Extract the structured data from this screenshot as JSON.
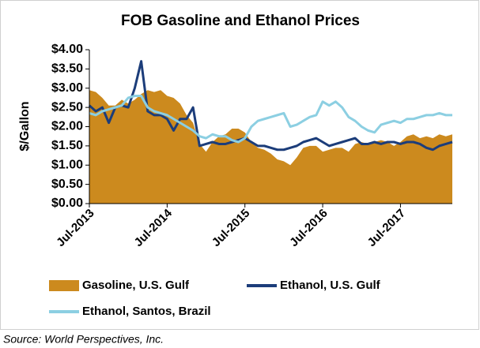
{
  "chart_data": {
    "type": "line",
    "title": "FOB Gasoline and Ethanol Prices",
    "y_label": "$/Gallon",
    "source": "Source: World Perspectives, Inc.",
    "x": [
      "2013-07",
      "2013-08",
      "2013-09",
      "2013-10",
      "2013-11",
      "2013-12",
      "2014-01",
      "2014-02",
      "2014-03",
      "2014-04",
      "2014-05",
      "2014-06",
      "2014-07",
      "2014-08",
      "2014-09",
      "2014-10",
      "2014-11",
      "2014-12",
      "2015-01",
      "2015-02",
      "2015-03",
      "2015-04",
      "2015-05",
      "2015-06",
      "2015-07",
      "2015-08",
      "2015-09",
      "2015-10",
      "2015-11",
      "2015-12",
      "2016-01",
      "2016-02",
      "2016-03",
      "2016-04",
      "2016-05",
      "2016-06",
      "2016-07",
      "2016-08",
      "2016-09",
      "2016-10",
      "2016-11",
      "2016-12",
      "2017-01",
      "2017-02",
      "2017-03",
      "2017-04",
      "2017-05",
      "2017-06",
      "2017-07",
      "2017-08",
      "2017-09",
      "2017-10",
      "2017-11",
      "2017-12",
      "2018-01",
      "2018-02",
      "2018-03"
    ],
    "xlim": [
      "2013-07",
      "2018-03"
    ],
    "xticks": [
      {
        "value": "2013-07",
        "label": "Jul-2013"
      },
      {
        "value": "2014-07",
        "label": "Jul-2014"
      },
      {
        "value": "2015-07",
        "label": "Jul-2015"
      },
      {
        "value": "2016-07",
        "label": "Jul-2016"
      },
      {
        "value": "2017-07",
        "label": "Jul-2017"
      }
    ],
    "ylim": [
      0,
      4
    ],
    "yticks": [
      {
        "value": 0,
        "label": "$0.00"
      },
      {
        "value": 0.5,
        "label": "$0.50"
      },
      {
        "value": 1,
        "label": "$1.00"
      },
      {
        "value": 1.5,
        "label": "$1.50"
      },
      {
        "value": 2,
        "label": "$2.00"
      },
      {
        "value": 2.5,
        "label": "$2.50"
      },
      {
        "value": 3,
        "label": "$3.00"
      },
      {
        "value": 3.5,
        "label": "$3.50"
      },
      {
        "value": 4,
        "label": "$4.00"
      }
    ],
    "grid": false,
    "legend": "bottom",
    "series": [
      {
        "name": "Gasoline, U.S. Gulf",
        "color": "#cc8a1e",
        "style": "area",
        "values": [
          2.95,
          2.9,
          2.75,
          2.55,
          2.55,
          2.7,
          2.6,
          2.7,
          2.85,
          2.95,
          2.9,
          2.95,
          2.8,
          2.75,
          2.6,
          2.3,
          2.1,
          1.55,
          1.35,
          1.6,
          1.75,
          1.8,
          1.95,
          1.95,
          1.85,
          1.6,
          1.45,
          1.4,
          1.3,
          1.15,
          1.1,
          1.0,
          1.2,
          1.45,
          1.5,
          1.5,
          1.35,
          1.4,
          1.45,
          1.45,
          1.35,
          1.55,
          1.6,
          1.55,
          1.6,
          1.65,
          1.6,
          1.5,
          1.6,
          1.75,
          1.8,
          1.7,
          1.75,
          1.7,
          1.8,
          1.75,
          1.8
        ]
      },
      {
        "name": "Ethanol, U.S. Gulf",
        "color": "#1c3d7a",
        "style": "line",
        "values": [
          2.55,
          2.4,
          2.5,
          2.1,
          2.5,
          2.55,
          2.5,
          3.0,
          3.7,
          2.4,
          2.3,
          2.3,
          2.2,
          1.9,
          2.2,
          2.2,
          2.5,
          1.5,
          1.55,
          1.6,
          1.55,
          1.55,
          1.6,
          1.65,
          1.7,
          1.6,
          1.5,
          1.5,
          1.45,
          1.4,
          1.4,
          1.45,
          1.5,
          1.6,
          1.65,
          1.7,
          1.6,
          1.5,
          1.55,
          1.6,
          1.65,
          1.7,
          1.55,
          1.55,
          1.6,
          1.55,
          1.6,
          1.6,
          1.55,
          1.6,
          1.6,
          1.55,
          1.45,
          1.4,
          1.5,
          1.55,
          1.6
        ]
      },
      {
        "name": "Ethanol, Santos, Brazil",
        "color": "#8ccfe2",
        "style": "line",
        "values": [
          2.35,
          2.3,
          2.4,
          2.45,
          2.5,
          2.55,
          2.75,
          2.8,
          2.8,
          2.5,
          2.4,
          2.35,
          2.3,
          2.2,
          2.1,
          2.0,
          1.9,
          1.75,
          1.7,
          1.8,
          1.75,
          1.75,
          1.65,
          1.6,
          1.7,
          2.0,
          2.15,
          2.2,
          2.25,
          2.3,
          2.35,
          2.0,
          2.05,
          2.15,
          2.25,
          2.3,
          2.65,
          2.55,
          2.65,
          2.5,
          2.25,
          2.15,
          2.0,
          1.9,
          1.85,
          2.05,
          2.1,
          2.15,
          2.1,
          2.2,
          2.2,
          2.25,
          2.3,
          2.3,
          2.35,
          2.3,
          2.3
        ]
      }
    ]
  }
}
